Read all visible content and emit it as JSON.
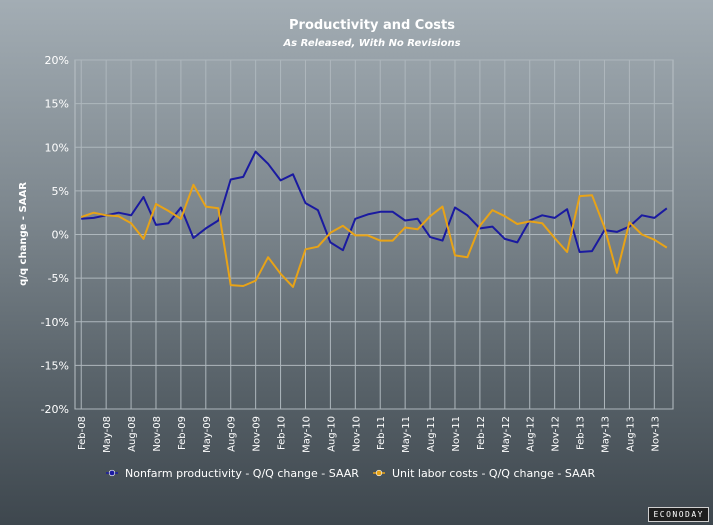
{
  "chart_data": {
    "type": "line",
    "title": "Productivity and Costs",
    "subtitle": "As Released, With No Revisions",
    "xlabel": "",
    "ylabel": "q/q change - SAAR",
    "ylim": [
      -20,
      20
    ],
    "y_ticks": [
      "20%",
      "15%",
      "10%",
      "5%",
      "0%",
      "-5%",
      "-10%",
      "-15%",
      "-20%"
    ],
    "x_ticks": [
      "Feb-08",
      "May-08",
      "Aug-08",
      "Nov-08",
      "Feb-09",
      "May-09",
      "Aug-09",
      "Nov-09",
      "Feb-10",
      "May-10",
      "Aug-10",
      "Nov-10",
      "Feb-11",
      "May-11",
      "Aug-11",
      "Nov-11",
      "Feb-12",
      "May-12",
      "Aug-12",
      "Nov-12",
      "Feb-13",
      "May-13",
      "Aug-13",
      "Nov-13"
    ],
    "grid": true,
    "legend_position": "bottom",
    "series": [
      {
        "name": "Nonfarm productivity - Q/Q change - SAAR",
        "color": "#1a1aa0",
        "values": [
          1.8,
          1.9,
          2.2,
          2.5,
          2.2,
          4.3,
          1.1,
          1.3,
          3.1,
          -0.4,
          0.7,
          1.6,
          6.3,
          6.6,
          9.5,
          8.1,
          6.2,
          6.9,
          3.6,
          2.8,
          -0.9,
          -1.8,
          1.8,
          2.3,
          2.6,
          2.6,
          1.6,
          1.8,
          -0.3,
          -0.7,
          3.1,
          2.2,
          0.7,
          0.9,
          -0.5,
          -0.9,
          1.6,
          2.2,
          1.9,
          2.9,
          -2.0,
          -1.9,
          0.5,
          0.3,
          0.9,
          2.2,
          1.9,
          3.0
        ]
      },
      {
        "name": "Unit labor costs - Q/Q change - SAAR",
        "color": "#e8a317",
        "values": [
          2.0,
          2.5,
          2.2,
          2.1,
          1.3,
          -0.5,
          3.5,
          2.7,
          1.8,
          5.7,
          3.2,
          3.0,
          -5.8,
          -5.9,
          -5.3,
          -2.6,
          -4.5,
          -6.0,
          -1.7,
          -1.4,
          0.2,
          1.0,
          -0.1,
          -0.1,
          -0.7,
          -0.7,
          0.8,
          0.6,
          2.1,
          3.2,
          -2.4,
          -2.6,
          1.0,
          2.8,
          2.1,
          1.2,
          1.5,
          1.3,
          -0.4,
          -2.0,
          4.4,
          4.5,
          0.8,
          -4.4,
          1.4,
          0.0,
          -0.6,
          -1.5
        ]
      }
    ]
  },
  "brand": "ECONODAY"
}
